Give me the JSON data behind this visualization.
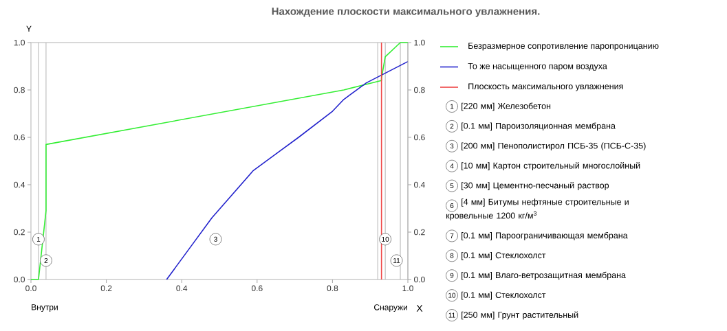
{
  "chart_data": {
    "type": "line",
    "title": "Нахождение плоскости максимального увлажнения.",
    "xlabel": "X",
    "ylabel": "Y",
    "xlim": [
      0,
      1
    ],
    "ylim": [
      0,
      1
    ],
    "y2lim": [
      0,
      1
    ],
    "xticks": [
      {
        "value": 0,
        "label": "0.0"
      },
      {
        "value": 0.2,
        "label": "0.2"
      },
      {
        "value": 0.4,
        "label": "0.4"
      },
      {
        "value": 0.6,
        "label": "0.6"
      },
      {
        "value": 0.8,
        "label": "0.8"
      },
      {
        "value": 1,
        "label": "1.0"
      }
    ],
    "yticks": [
      {
        "value": 0,
        "label": "0.0"
      },
      {
        "value": 0.2,
        "label": "0.2"
      },
      {
        "value": 0.4,
        "label": "0.4"
      },
      {
        "value": 0.6,
        "label": "0.6"
      },
      {
        "value": 0.8,
        "label": "0.8"
      },
      {
        "value": 1,
        "label": "1.0"
      }
    ],
    "y2ticks": [
      {
        "value": 0,
        "label": "0.0"
      },
      {
        "value": 0.2,
        "label": "0.2"
      },
      {
        "value": 0.4,
        "label": "0.4"
      },
      {
        "value": 0.6,
        "label": "0.6"
      },
      {
        "value": 0.8,
        "label": "0.8"
      },
      {
        "value": 1,
        "label": "1.0"
      }
    ],
    "legend": "right",
    "series": [
      {
        "name": "Безразмерное сопротивление паропроницанию",
        "color": "#33ee33",
        "x": [
          0,
          0.02,
          0.04,
          0.04,
          0.83,
          0.93,
          0.93,
          0.94,
          0.98,
          1
        ],
        "values": [
          0,
          0,
          0.29,
          0.57,
          0.8,
          0.84,
          0.85,
          0.94,
          1,
          1
        ]
      },
      {
        "name": "То же насыщенного паром воздуха",
        "color": "#2222cc",
        "x": [
          0.36,
          0.42,
          0.48,
          0.59,
          0.65,
          0.71,
          0.8,
          0.83,
          0.89,
          1
        ],
        "values": [
          0,
          0.13,
          0.26,
          0.46,
          0.53,
          0.6,
          0.71,
          0.76,
          0.83,
          0.92
        ]
      },
      {
        "name": "Плоскость максимального увлажнения",
        "color": "#ee4444",
        "x": [
          0.93,
          0.93
        ],
        "values": [
          0,
          1
        ]
      }
    ],
    "ref_lines": [
      {
        "axis": "x",
        "value": 0.02,
        "color": "#b4b4b4"
      },
      {
        "axis": "x",
        "value": 0.04,
        "color": "#b4b4b4"
      },
      {
        "axis": "x",
        "value": 0.92,
        "color": "#b4b4b4"
      },
      {
        "axis": "x",
        "value": 0.94,
        "color": "#b4b4b4"
      },
      {
        "axis": "x",
        "value": 0.98,
        "color": "#b4b4b4"
      }
    ],
    "annotations": [
      {
        "text": "1",
        "x": 0.02,
        "y": 0.17
      },
      {
        "text": "2",
        "x": 0.04,
        "y": 0.08
      },
      {
        "text": "3",
        "x": 0.49,
        "y": 0.17
      },
      {
        "text": "10",
        "x": 0.94,
        "y": 0.17
      },
      {
        "text": "11",
        "x": 0.97,
        "y": 0.08
      },
      "Внутри",
      "Снаружи",
      "1",
      "[220 мм] Железобетон",
      "2",
      "[0.1 мм] Пароизоляционная мембрана",
      "3",
      "[200 мм] Пенополистирол ПСБ-35 (ПСБ-С-35)",
      "4",
      "[10 мм] Картон строительный многослойный",
      "5",
      "[30 мм] Цементно-песчаный раствор",
      "6",
      "[4 мм] Битумы нефтяные строительные и кровельные 1200 кг/м$^{3}$",
      "7",
      "[0.1 мм] Пароограничивающая мембрана",
      "8",
      "[0.1 мм] Стеклохолст",
      "9",
      "[0.1 мм] Влаго-ветрозащитная мембрана",
      "10",
      "[0.1 мм] Стеклохолст",
      "11",
      "[250 мм] Грунт растительный"
    ]
  }
}
